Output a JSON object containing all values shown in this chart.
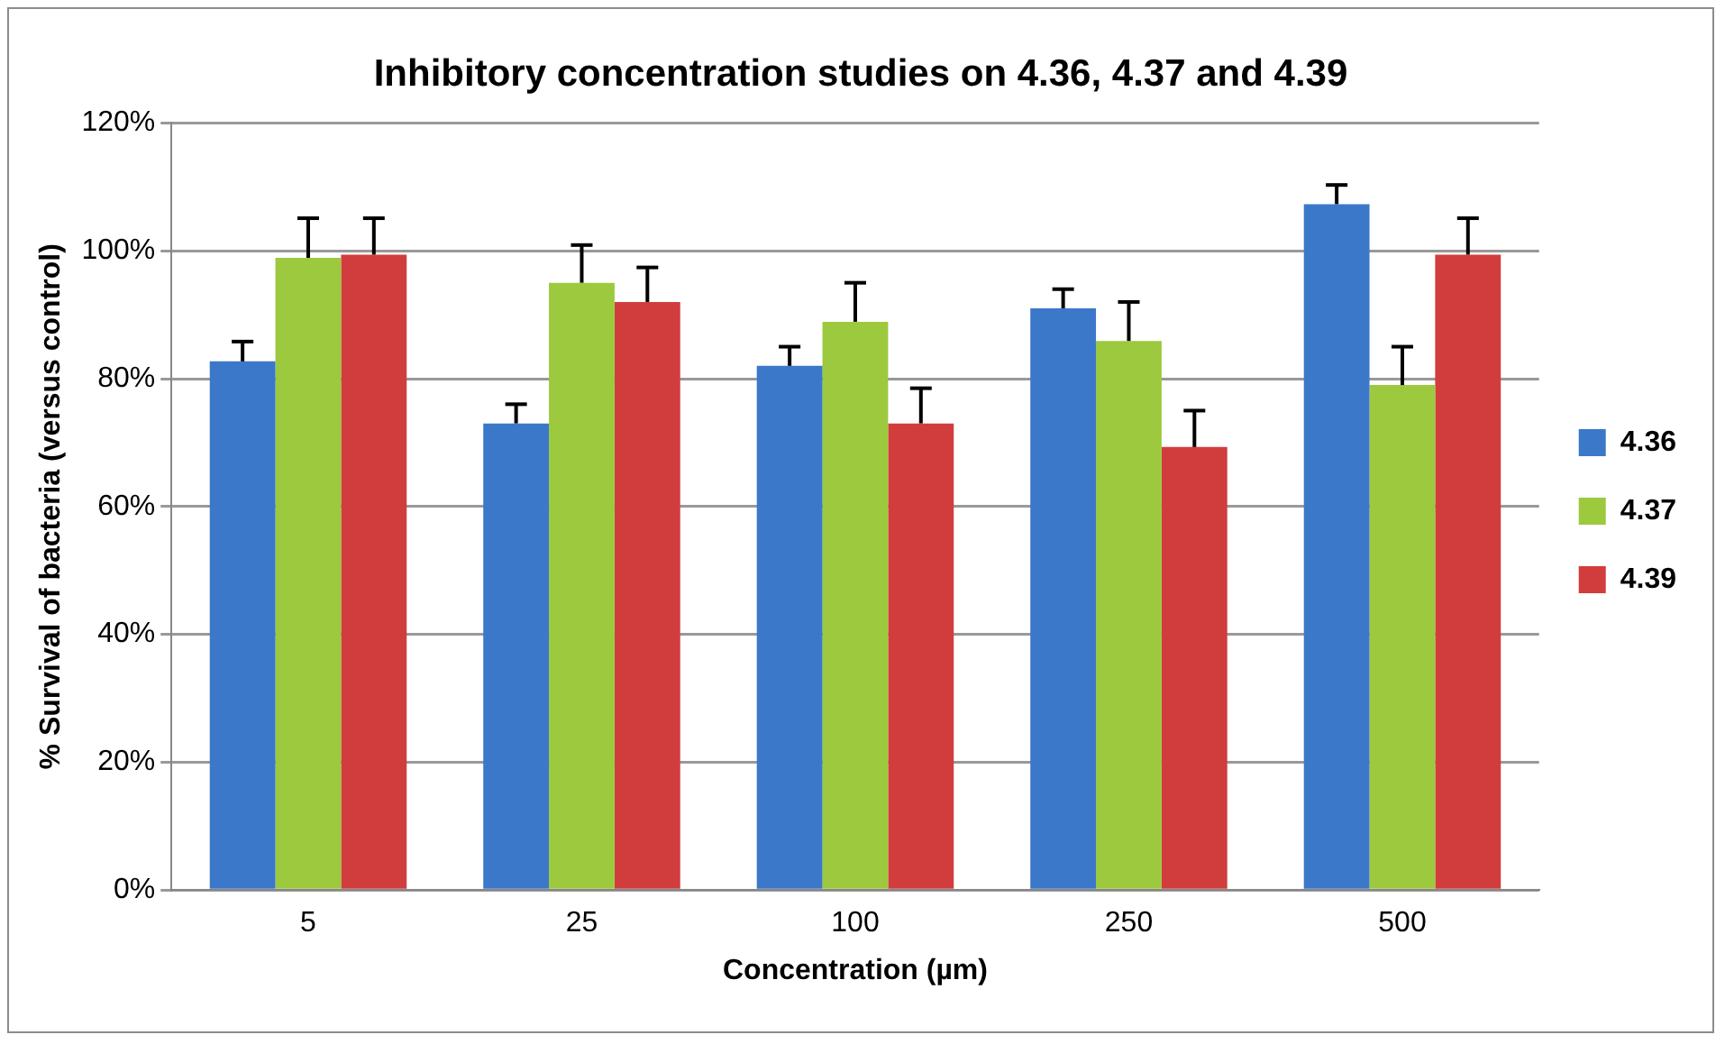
{
  "chart_data": {
    "type": "bar",
    "title": "Inhibitory concentration studies on 4.36, 4.37 and 4.39",
    "xlabel": "Concentration (µm)",
    "ylabel": "% Survival of bacteria (versus control)",
    "categories": [
      "5",
      "25",
      "100",
      "250",
      "500"
    ],
    "series": [
      {
        "name": "4.36",
        "color": "#3b78c9",
        "values": [
          82.7,
          73,
          82,
          91,
          107.3
        ],
        "errors": [
          [
            82.7,
            85.8
          ],
          [
            73,
            76
          ],
          [
            82,
            85
          ],
          [
            91,
            94
          ],
          [
            107.3,
            110.3
          ]
        ]
      },
      {
        "name": "4.37",
        "color": "#9cc93e",
        "values": [
          98.9,
          95,
          88.9,
          85.9,
          79
        ],
        "errors": [
          [
            98.9,
            105.1
          ],
          [
            95,
            100.9
          ],
          [
            88.9,
            95
          ],
          [
            85.9,
            92
          ],
          [
            79,
            85
          ]
        ]
      },
      {
        "name": "4.39",
        "color": "#d13d3d",
        "values": [
          99.4,
          92,
          73,
          69.3,
          99.4
        ],
        "errors": [
          [
            99.4,
            105.1
          ],
          [
            92,
            97.4
          ],
          [
            73,
            78.5
          ],
          [
            69.3,
            75
          ],
          [
            99.4,
            105.1
          ]
        ]
      }
    ],
    "ylim": [
      0,
      120
    ],
    "yticks": [
      {
        "value": 0,
        "label": "0%"
      },
      {
        "value": 20,
        "label": "20%"
      },
      {
        "value": 40,
        "label": "40%"
      },
      {
        "value": 60,
        "label": "60%"
      },
      {
        "value": 80,
        "label": "80%"
      },
      {
        "value": 100,
        "label": "100%"
      },
      {
        "value": 120,
        "label": "120%"
      }
    ],
    "grid": "y",
    "legend": "right"
  }
}
